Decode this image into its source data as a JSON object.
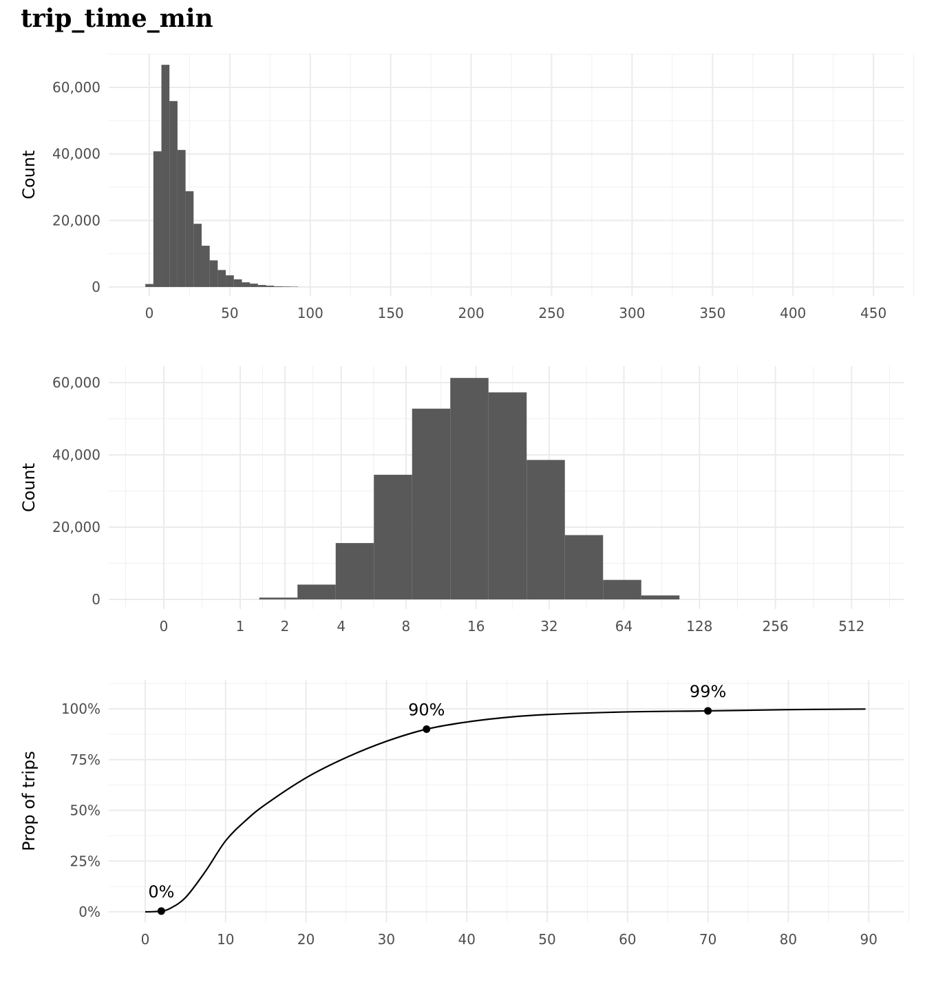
{
  "title": "trip_time_min",
  "chart_data": [
    {
      "type": "bar",
      "subtype": "histogram",
      "ylabel": "Count",
      "xlabel": "",
      "bin_width": 5,
      "x": [
        0,
        5,
        10,
        15,
        20,
        25,
        30,
        35,
        40,
        45,
        50,
        55,
        60,
        65,
        70,
        75,
        80,
        85,
        90
      ],
      "values": [
        900,
        40800,
        66800,
        55900,
        41200,
        28800,
        19000,
        12400,
        8000,
        5100,
        3500,
        2300,
        1400,
        1000,
        600,
        400,
        200,
        150,
        100
      ],
      "xlim": [
        -25,
        470
      ],
      "ylim": [
        0,
        70000
      ],
      "xticks": [
        0,
        50,
        100,
        150,
        200,
        250,
        300,
        350,
        400,
        450
      ],
      "xtick_labels": [
        "0",
        "50",
        "100",
        "150",
        "200",
        "250",
        "300",
        "350",
        "400",
        "450"
      ],
      "yticks": [
        0,
        20000,
        40000,
        60000
      ],
      "ytick_labels": [
        "0",
        "20,000",
        "40,000",
        "60,000"
      ],
      "grid": true
    },
    {
      "type": "bar",
      "subtype": "histogram",
      "xscale": "log2(x+1)",
      "ylabel": "Count",
      "xlabel": "",
      "x_transformed_centers": [
        1.5,
        2,
        2.5,
        3,
        3.5,
        4,
        4.5,
        5,
        5.5,
        6,
        6.5
      ],
      "values": [
        500,
        4100,
        15600,
        34500,
        52800,
        61300,
        57300,
        38600,
        17800,
        5400,
        1100
      ],
      "xticks": [
        0,
        1,
        2,
        4,
        8,
        16,
        32,
        64,
        128,
        256,
        512
      ],
      "xtick_labels": [
        "0",
        "1",
        "2",
        "4",
        "8",
        "16",
        "32",
        "64",
        "128",
        "256",
        "512"
      ],
      "yticks": [
        0,
        20000,
        40000,
        60000
      ],
      "ytick_labels": [
        "0",
        "20,000",
        "40,000",
        "60,000"
      ],
      "ylim": [
        0,
        65000
      ],
      "grid": true
    },
    {
      "type": "line",
      "subtype": "ecdf",
      "ylabel": "Prop of trips",
      "xlabel": "",
      "x": [
        0,
        1,
        2,
        3,
        5,
        7.5,
        10,
        12.5,
        15,
        20,
        25,
        30,
        35,
        40,
        45,
        50,
        60,
        70,
        80,
        89.6
      ],
      "y": [
        0,
        0.001,
        0.004,
        0.015,
        0.07,
        0.2,
        0.35,
        0.45,
        0.53,
        0.66,
        0.76,
        0.84,
        0.9,
        0.935,
        0.958,
        0.972,
        0.985,
        0.99,
        0.996,
        0.999
      ],
      "points": [
        {
          "x": 2,
          "y": 0.004,
          "label": "0%"
        },
        {
          "x": 35,
          "y": 0.9,
          "label": "90%"
        },
        {
          "x": 70,
          "y": 0.99,
          "label": "99%"
        }
      ],
      "xlim": [
        -4.5,
        94
      ],
      "ylim": [
        -0.04,
        1.13
      ],
      "xticks": [
        0,
        10,
        20,
        30,
        40,
        50,
        60,
        70,
        80,
        90
      ],
      "xtick_labels": [
        "0",
        "10",
        "20",
        "30",
        "40",
        "50",
        "60",
        "70",
        "80",
        "90"
      ],
      "yticks": [
        0,
        0.25,
        0.5,
        0.75,
        1
      ],
      "ytick_labels": [
        "0%",
        "25%",
        "50%",
        "75%",
        "100%"
      ],
      "grid": true
    }
  ]
}
